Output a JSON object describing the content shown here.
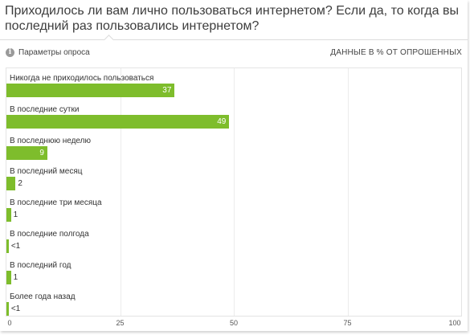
{
  "title": "Приходилось ли вам лично пользоваться интернетом? Если да, то когда вы последний раз пользовались интернетом?",
  "params_label": "Параметры опроса",
  "info_icon": "info-icon",
  "units_label": "ДАННЫЕ В % ОТ ОПРОШЕННЫХ",
  "colors": {
    "bar": "#7ebd2c"
  },
  "chart_data": {
    "type": "bar",
    "orientation": "horizontal",
    "categories": [
      "Никогда не приходилось пользоваться",
      "В последние сутки",
      "В последнюю неделю",
      "В последний месяц",
      "В последние три месяца",
      "В последние полгода",
      "В последний год",
      "Более года назад"
    ],
    "values": [
      37,
      49,
      9,
      2,
      1,
      0.5,
      1,
      0.5
    ],
    "value_labels": [
      "37",
      "49",
      "9",
      "2",
      "1",
      "<1",
      "1",
      "<1"
    ],
    "xlim": [
      0,
      100
    ],
    "xticks": [
      0,
      25,
      50,
      75,
      100
    ],
    "xtick_labels": [
      "0",
      "25",
      "50",
      "75",
      "100"
    ],
    "grid": true,
    "legend": "none"
  }
}
